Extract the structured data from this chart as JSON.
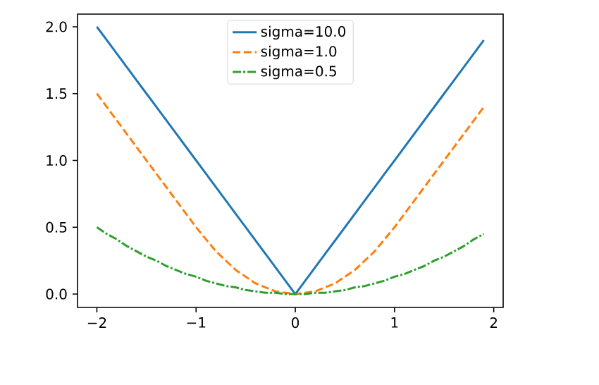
{
  "chart_data": {
    "type": "line",
    "x": [
      -2.0,
      -1.9,
      -1.8,
      -1.7,
      -1.6,
      -1.5,
      -1.4,
      -1.3,
      -1.2,
      -1.1,
      -1.0,
      -0.9,
      -0.8,
      -0.7,
      -0.6,
      -0.5,
      -0.4,
      -0.3,
      -0.2,
      -0.1,
      0.0,
      0.1,
      0.2,
      0.3,
      0.4,
      0.5,
      0.6,
      0.7,
      0.8,
      0.9,
      1.0,
      1.1,
      1.2,
      1.3,
      1.4,
      1.5,
      1.6,
      1.7,
      1.8,
      1.9
    ],
    "series": [
      {
        "name": "sigma=10.0",
        "color": "#1f77b4",
        "line_style": "solid",
        "values": [
          2.0,
          1.9,
          1.8,
          1.7,
          1.6,
          1.5,
          1.4,
          1.3,
          1.2,
          1.1,
          1.0,
          0.9,
          0.8,
          0.7,
          0.6,
          0.5,
          0.4,
          0.3,
          0.2,
          0.1,
          0.0,
          0.1,
          0.2,
          0.3,
          0.4,
          0.5,
          0.6,
          0.7,
          0.8,
          0.9,
          1.0,
          1.1,
          1.2,
          1.3,
          1.4,
          1.5,
          1.6,
          1.7,
          1.8,
          1.9
        ]
      },
      {
        "name": "sigma=1.0",
        "color": "#ff7f0e",
        "line_style": "dashed",
        "values": [
          1.5,
          1.4,
          1.3,
          1.2,
          1.1,
          1.0,
          0.9,
          0.8,
          0.7,
          0.6,
          0.5,
          0.41,
          0.32,
          0.25,
          0.18,
          0.13,
          0.08,
          0.05,
          0.02,
          0.01,
          0.0,
          0.01,
          0.02,
          0.05,
          0.08,
          0.13,
          0.18,
          0.25,
          0.32,
          0.41,
          0.5,
          0.6,
          0.7,
          0.8,
          0.9,
          1.0,
          1.1,
          1.2,
          1.3,
          1.4
        ]
      },
      {
        "name": "sigma=0.5",
        "color": "#2ca02c",
        "line_style": "dashdot",
        "values": [
          0.5,
          0.45,
          0.41,
          0.36,
          0.32,
          0.28,
          0.25,
          0.21,
          0.18,
          0.15,
          0.13,
          0.1,
          0.08,
          0.06,
          0.05,
          0.03,
          0.02,
          0.01,
          0.01,
          0.0,
          0.0,
          0.0,
          0.01,
          0.01,
          0.02,
          0.03,
          0.05,
          0.06,
          0.08,
          0.1,
          0.13,
          0.15,
          0.18,
          0.21,
          0.25,
          0.28,
          0.32,
          0.36,
          0.41,
          0.45
        ]
      }
    ],
    "xlim": [
      -2.195,
      2.095
    ],
    "ylim": [
      -0.1,
      2.095
    ],
    "xticks": [
      {
        "value": -2,
        "label": "−2"
      },
      {
        "value": -1,
        "label": "−1"
      },
      0,
      1,
      2
    ],
    "yticks": [
      {
        "value": 0,
        "label": "0.0"
      },
      {
        "value": 0.5,
        "label": "0.5"
      },
      {
        "value": 1,
        "label": "1.0"
      },
      {
        "value": 1.5,
        "label": "1.5"
      },
      {
        "value": 2,
        "label": "2.0"
      }
    ],
    "legend": "top",
    "grid": false
  }
}
